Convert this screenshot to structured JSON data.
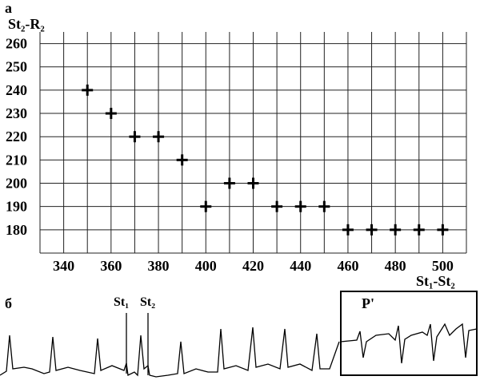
{
  "panel_a_letter": "а",
  "panel_b_letter": "б",
  "chart_data": {
    "type": "scatter",
    "title": "",
    "xlabel": "St₁-St₂",
    "ylabel": "St₂-R₂",
    "xlim": [
      330,
      510
    ],
    "ylim": [
      170,
      265
    ],
    "xticks": [
      340,
      360,
      380,
      400,
      420,
      440,
      460,
      480,
      500
    ],
    "yticks": [
      180,
      190,
      200,
      210,
      220,
      230,
      240,
      250,
      260
    ],
    "grid": true,
    "marker": "plus",
    "series": [
      {
        "x": [
          350,
          360,
          370,
          380,
          390,
          400,
          410,
          420,
          430,
          440,
          450,
          460,
          470,
          480,
          490,
          500
        ],
        "y": [
          240,
          230,
          220,
          220,
          210,
          190,
          200,
          200,
          190,
          190,
          190,
          180,
          180,
          180,
          180,
          180
        ]
      }
    ]
  },
  "ecg": {
    "stim1_label": "St₁",
    "stim2_label": "St₂",
    "inset_label": "P'"
  }
}
